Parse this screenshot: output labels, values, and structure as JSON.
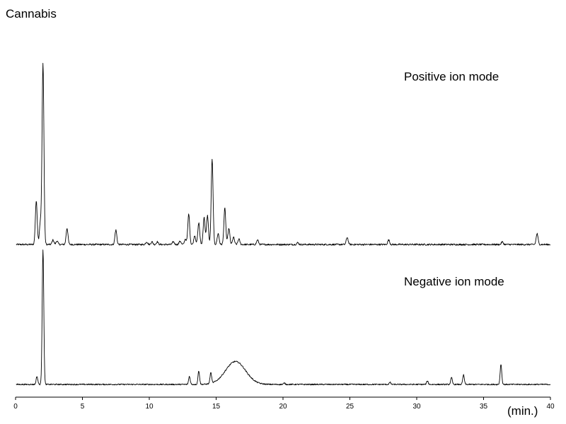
{
  "chart_data": {
    "type": "line",
    "title": "Cannabis",
    "xlabel": "(min.)",
    "xlim": [
      0,
      40
    ],
    "x_ticks": [
      0,
      5,
      10,
      15,
      20,
      25,
      30,
      35,
      40
    ],
    "grid": false,
    "series": [
      {
        "name": "Positive ion mode",
        "peaks": [
          [
            1.55,
            24
          ],
          [
            1.85,
            12
          ],
          [
            2.05,
            100
          ],
          [
            2.8,
            2.5
          ],
          [
            3.1,
            2
          ],
          [
            3.85,
            9
          ],
          [
            7.5,
            8
          ],
          [
            9.8,
            1.5
          ],
          [
            10.2,
            1.5
          ],
          [
            10.6,
            1.5
          ],
          [
            11.8,
            1.5
          ],
          [
            12.3,
            2
          ],
          [
            12.7,
            3
          ],
          [
            12.95,
            17
          ],
          [
            13.4,
            5
          ],
          [
            13.7,
            12
          ],
          [
            14.1,
            15
          ],
          [
            14.35,
            16
          ],
          [
            14.7,
            47
          ],
          [
            15.15,
            6
          ],
          [
            15.65,
            20
          ],
          [
            15.95,
            9
          ],
          [
            16.3,
            4
          ],
          [
            16.7,
            3
          ],
          [
            18.1,
            2.5
          ],
          [
            21.1,
            1
          ],
          [
            24.8,
            4
          ],
          [
            27.9,
            2.5
          ],
          [
            36.4,
            1.5
          ],
          [
            39.0,
            6
          ]
        ]
      },
      {
        "name": "Negative ion mode",
        "peaks": [
          [
            1.6,
            6
          ],
          [
            2.05,
            100
          ],
          [
            13.0,
            6
          ],
          [
            13.7,
            10
          ],
          [
            14.6,
            8
          ],
          [
            16.45,
            17
          ],
          [
            20.1,
            1
          ],
          [
            28.0,
            1.5
          ],
          [
            30.8,
            2.5
          ],
          [
            32.6,
            5
          ],
          [
            33.5,
            7
          ],
          [
            36.3,
            15
          ]
        ]
      }
    ]
  }
}
